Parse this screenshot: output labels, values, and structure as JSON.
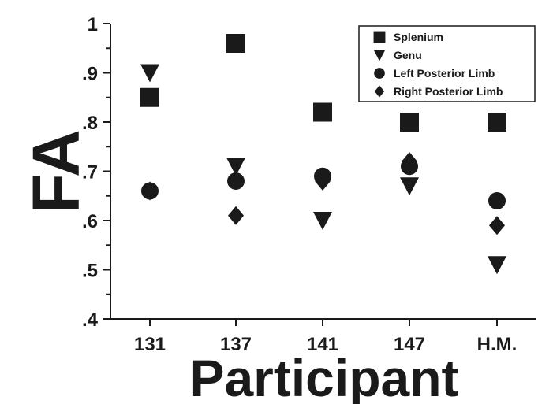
{
  "chart_data": {
    "type": "scatter",
    "categories": [
      "131",
      "137",
      "141",
      "147",
      "H.M."
    ],
    "xlabel": "Participant",
    "ylabel": "FA",
    "ylim": [
      0.4,
      1.0
    ],
    "yticks": [
      0.4,
      0.5,
      0.6,
      0.7,
      0.8,
      0.9,
      1.0
    ],
    "ytick_labels": [
      ".4",
      ".5",
      ".6",
      ".7",
      ".8",
      ".9",
      "1"
    ],
    "grid": false,
    "legend_position": "top-right",
    "series": [
      {
        "name": "Splenium",
        "marker": "square",
        "values": [
          0.85,
          0.96,
          0.82,
          0.8,
          0.8
        ]
      },
      {
        "name": "Genu",
        "marker": "triangle-down",
        "values": [
          0.9,
          0.71,
          0.6,
          0.67,
          0.51
        ]
      },
      {
        "name": "Left Posterior Limb",
        "marker": "circle",
        "values": [
          0.66,
          0.68,
          0.69,
          0.71,
          0.64
        ]
      },
      {
        "name": "Right Posterior Limb",
        "marker": "diamond",
        "values": [
          0.66,
          0.61,
          0.68,
          0.72,
          0.59
        ]
      }
    ],
    "color": "#1a1a1a"
  }
}
